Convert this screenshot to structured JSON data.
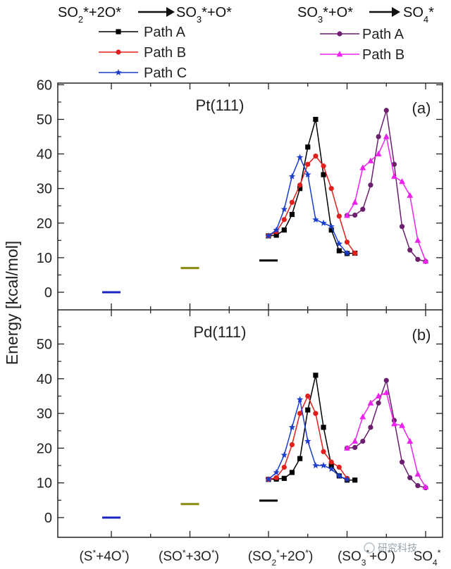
{
  "chart_data": {
    "type": "line",
    "ylabel": "Energy [kcal/mol]",
    "x_categories": [
      "(S*+4O*)",
      "(SO*+3O*)",
      "(SO2*+2O*)",
      "(SO3*+O*)",
      "SO4*"
    ],
    "legend_groups": [
      {
        "reaction": "SO2*+2O* → SO3*+O*",
        "entries": [
          "Path A",
          "Path B",
          "Path C"
        ]
      },
      {
        "reaction": "SO3*+O* → SO4*",
        "entries": [
          "Path A",
          "Path B"
        ]
      }
    ],
    "colors": {
      "path_a_1": "#000000",
      "path_b_1": "#e0201c",
      "path_c_1": "#1a3ccc",
      "path_a_2": "#6b1f6e",
      "path_b_2": "#ee22ee",
      "level_s": "#1b23c8",
      "level_so": "#8a8a10",
      "level_so2": "#000000"
    },
    "panels": [
      {
        "title": "Pt(111)",
        "label": "(a)",
        "ylim": [
          -5,
          60
        ],
        "yticks": [
          "0",
          "10",
          "20",
          "30",
          "40",
          "50",
          "60"
        ],
        "levels": [
          {
            "x": 1,
            "y": 0
          },
          {
            "x": 2,
            "y": 7
          },
          {
            "x": 3,
            "y": 9.2
          }
        ],
        "series": [
          {
            "name": "Path A",
            "marker": "square",
            "color_key": "path_a_1",
            "points": [
              [
                3.0,
                16.3
              ],
              [
                3.1,
                16.5
              ],
              [
                3.2,
                18
              ],
              [
                3.3,
                22.5
              ],
              [
                3.4,
                30
              ],
              [
                3.5,
                42
              ],
              [
                3.6,
                50
              ],
              [
                3.7,
                34
              ],
              [
                3.8,
                18
              ],
              [
                3.9,
                12
              ],
              [
                4.0,
                11.2
              ],
              [
                4.1,
                11.3
              ]
            ]
          },
          {
            "name": "Path B",
            "marker": "circle",
            "color_key": "path_b_1",
            "points": [
              [
                3.0,
                16.3
              ],
              [
                3.1,
                17.5
              ],
              [
                3.2,
                21
              ],
              [
                3.3,
                26
              ],
              [
                3.4,
                31
              ],
              [
                3.5,
                37
              ],
              [
                3.6,
                39.4
              ],
              [
                3.7,
                36.5
              ],
              [
                3.8,
                30
              ],
              [
                3.9,
                22
              ],
              [
                4.0,
                14.5
              ],
              [
                4.1,
                11.3
              ]
            ]
          },
          {
            "name": "Path C",
            "marker": "star",
            "color_key": "path_c_1",
            "points": [
              [
                3.0,
                16.3
              ],
              [
                3.1,
                18
              ],
              [
                3.2,
                24
              ],
              [
                3.3,
                33.5
              ],
              [
                3.4,
                39
              ],
              [
                3.5,
                34
              ],
              [
                3.6,
                21
              ],
              [
                3.7,
                20
              ],
              [
                3.8,
                19
              ],
              [
                3.9,
                14
              ],
              [
                4.0,
                11.3
              ]
            ]
          },
          {
            "name": "Path A",
            "marker": "circle",
            "color_key": "path_a_2",
            "points": [
              [
                4.0,
                22.2
              ],
              [
                4.1,
                22.3
              ],
              [
                4.2,
                24
              ],
              [
                4.3,
                31
              ],
              [
                4.4,
                45
              ],
              [
                4.5,
                52.6
              ],
              [
                4.6,
                37
              ],
              [
                4.7,
                19
              ],
              [
                4.8,
                12.2
              ],
              [
                4.9,
                9.5
              ],
              [
                5.0,
                8.9
              ]
            ]
          },
          {
            "name": "Path B",
            "marker": "triangle",
            "color_key": "path_b_2",
            "points": [
              [
                4.0,
                22.2
              ],
              [
                4.1,
                26
              ],
              [
                4.2,
                36
              ],
              [
                4.3,
                38
              ],
              [
                4.4,
                40
              ],
              [
                4.5,
                45
              ],
              [
                4.6,
                33.5
              ],
              [
                4.7,
                32
              ],
              [
                4.8,
                28
              ],
              [
                4.9,
                15
              ],
              [
                5.0,
                9
              ]
            ]
          }
        ]
      },
      {
        "title": "Pd(111)",
        "label": "(b)",
        "ylim": [
          -5,
          60
        ],
        "yticks": [
          "0",
          "10",
          "20",
          "30",
          "40",
          "50"
        ],
        "levels": [
          {
            "x": 1,
            "y": 0
          },
          {
            "x": 2,
            "y": 3.9
          },
          {
            "x": 3,
            "y": 4.9
          }
        ],
        "series": [
          {
            "name": "Path A",
            "marker": "square",
            "color_key": "path_a_1",
            "points": [
              [
                3.0,
                11
              ],
              [
                3.1,
                11.1
              ],
              [
                3.2,
                11.3
              ],
              [
                3.3,
                13
              ],
              [
                3.4,
                17
              ],
              [
                3.5,
                31
              ],
              [
                3.6,
                41
              ],
              [
                3.7,
                26
              ],
              [
                3.8,
                15
              ],
              [
                3.9,
                12
              ],
              [
                4.0,
                10.8
              ],
              [
                4.1,
                10.8
              ]
            ]
          },
          {
            "name": "Path B",
            "marker": "circle",
            "color_key": "path_b_1",
            "points": [
              [
                3.0,
                11
              ],
              [
                3.1,
                11.5
              ],
              [
                3.2,
                14.5
              ],
              [
                3.3,
                21
              ],
              [
                3.4,
                30
              ],
              [
                3.5,
                35
              ],
              [
                3.6,
                30
              ],
              [
                3.7,
                19
              ],
              [
                3.8,
                16
              ],
              [
                3.9,
                14.5
              ],
              [
                4.0,
                11.3
              ]
            ]
          },
          {
            "name": "Path C",
            "marker": "star",
            "color_key": "path_c_1",
            "points": [
              [
                3.0,
                11
              ],
              [
                3.1,
                13
              ],
              [
                3.2,
                18
              ],
              [
                3.3,
                26
              ],
              [
                3.4,
                34
              ],
              [
                3.5,
                22
              ],
              [
                3.6,
                15
              ],
              [
                3.7,
                15
              ],
              [
                3.8,
                14
              ],
              [
                3.9,
                12
              ],
              [
                4.0,
                11
              ]
            ]
          },
          {
            "name": "Path A",
            "marker": "circle",
            "color_key": "path_a_2",
            "points": [
              [
                4.0,
                20
              ],
              [
                4.1,
                20.2
              ],
              [
                4.2,
                22
              ],
              [
                4.3,
                26
              ],
              [
                4.4,
                33
              ],
              [
                4.5,
                39.5
              ],
              [
                4.6,
                28
              ],
              [
                4.7,
                16
              ],
              [
                4.8,
                11.5
              ],
              [
                4.9,
                9.2
              ],
              [
                5.0,
                8.6
              ]
            ]
          },
          {
            "name": "Path B",
            "marker": "triangle",
            "color_key": "path_b_2",
            "points": [
              [
                4.0,
                20
              ],
              [
                4.1,
                22
              ],
              [
                4.2,
                29
              ],
              [
                4.3,
                33
              ],
              [
                4.4,
                35
              ],
              [
                4.5,
                36
              ],
              [
                4.6,
                27
              ],
              [
                4.7,
                26.5
              ],
              [
                4.8,
                22
              ],
              [
                4.9,
                12.5
              ],
              [
                5.0,
                8.8
              ]
            ]
          }
        ]
      }
    ]
  },
  "watermark": "研究科技"
}
